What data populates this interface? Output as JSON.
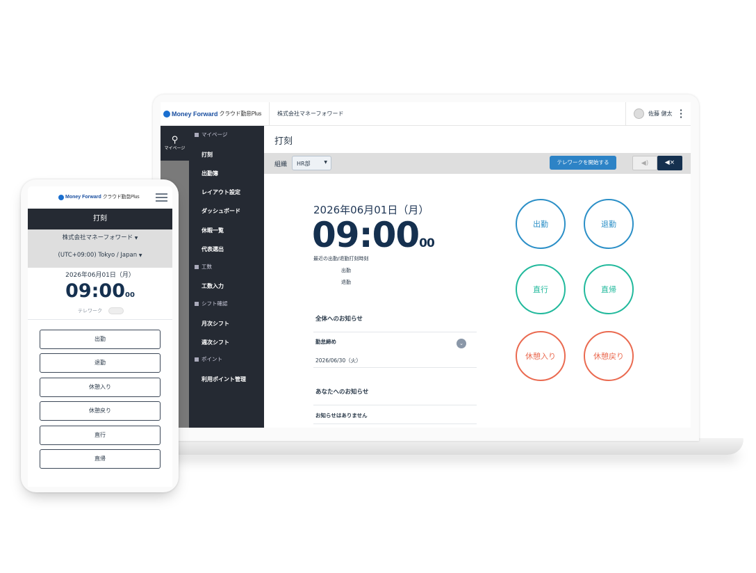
{
  "brand": {
    "logo": "Money Forward",
    "product": "クラウド勤怠Plus"
  },
  "laptop": {
    "company": "株式会社マネーフォワード",
    "user": "佐藤 健太",
    "rail_label": "マイページ",
    "sidebar": {
      "groups": [
        {
          "label": "マイページ",
          "items": [
            "打刻",
            "出勤簿",
            "レイアウト設定",
            "ダッシュボード",
            "休暇一覧",
            "代表選出"
          ]
        },
        {
          "label": "工数",
          "items": [
            "工数入力"
          ]
        },
        {
          "label": "シフト確認",
          "items": [
            "月次シフト",
            "週次シフト"
          ]
        },
        {
          "label": "ポイント",
          "items": [
            "利用ポイント管理"
          ]
        }
      ]
    },
    "page_title": "打刻",
    "org_label": "組織",
    "org_value": "HR部",
    "telework_button": "テレワークを開始する",
    "sound_on_icon": "speaker-on-icon",
    "sound_off_icon": "speaker-mute-icon",
    "date": "2026年06月01日（月）",
    "time": "09:00",
    "seconds": "00",
    "recent_label": "最近の出勤/退勤打刻時刻",
    "recent": [
      "出勤",
      "退勤"
    ],
    "notices_all_title": "全体へのお知らせ",
    "notice_item": "勤怠締め",
    "notice_date": "2026/06/30（火）",
    "notices_you_title": "あなたへのお知らせ",
    "notices_you_empty": "お知らせはありません",
    "punch_buttons": [
      {
        "label": "出勤",
        "color": "#2b8fc7"
      },
      {
        "label": "退勤",
        "color": "#2b8fc7"
      },
      {
        "label": "直行",
        "color": "#21b99c"
      },
      {
        "label": "直帰",
        "color": "#21b99c"
      },
      {
        "label": "休憩入り",
        "color": "#ea6a50"
      },
      {
        "label": "休憩戻り",
        "color": "#ea6a50"
      }
    ]
  },
  "phone": {
    "title": "打刻",
    "company": "株式会社マネーフォワード",
    "timezone": "(UTC+09:00) Tokyo / Japan",
    "date": "2026年06月01日（月）",
    "time": "09:00",
    "seconds": "00",
    "telework": "テレワーク",
    "buttons": [
      "出勤",
      "退勤",
      "休憩入り",
      "休憩戻り",
      "直行",
      "直帰"
    ]
  }
}
